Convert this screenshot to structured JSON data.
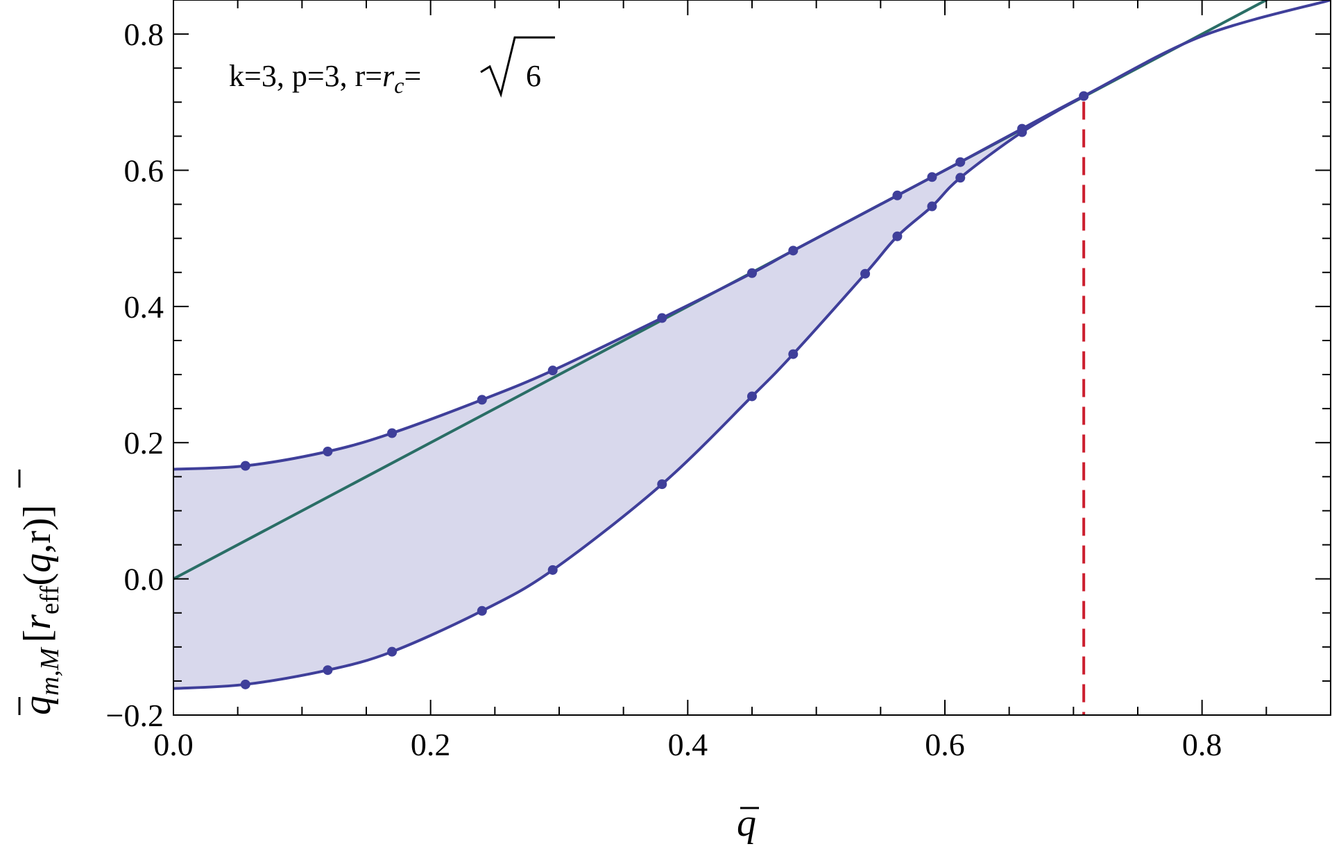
{
  "chart_data": {
    "type": "line",
    "title": "",
    "annotation": {
      "plain": "k=3, p=3, r=",
      "r_symbol": "r",
      "r_sub": "c",
      "equals": "=",
      "sqrt_arg": "6"
    },
    "xlabel": {
      "base": "q"
    },
    "ylabel": {
      "base": "q",
      "sub": "m,M",
      "open": "[",
      "r_sym": "r",
      "r_sub": "eff",
      "args_open": "(",
      "args_q": "q",
      "args_rest": ",r)]"
    },
    "xlim": [
      0.0,
      0.9
    ],
    "ylim": [
      -0.2,
      0.85
    ],
    "x_ticks": [
      {
        "value": 0.0,
        "label": "0.0"
      },
      {
        "value": 0.2,
        "label": "0.2"
      },
      {
        "value": 0.4,
        "label": "0.4"
      },
      {
        "value": 0.6,
        "label": "0.6"
      },
      {
        "value": 0.8,
        "label": "0.8"
      }
    ],
    "y_ticks": [
      {
        "value": -0.2,
        "label": "−0.2"
      },
      {
        "value": 0.0,
        "label": "0.0"
      },
      {
        "value": 0.2,
        "label": "0.2"
      },
      {
        "value": 0.4,
        "label": "0.4"
      },
      {
        "value": 0.6,
        "label": "0.6"
      },
      {
        "value": 0.8,
        "label": "0.8"
      }
    ],
    "x_minor_step": 0.05,
    "y_minor_step": 0.05,
    "grid": false,
    "legend": "none",
    "colors": {
      "curve": "#3F3F9A",
      "diagonal": "#2A6E66",
      "fill": "#D8D8EC",
      "critical": "#CC1F2F",
      "points": "#3F3F9A"
    },
    "series": [
      {
        "key": "upper",
        "points": [
          [
            0.0,
            0.161
          ],
          [
            0.056,
            0.166
          ],
          [
            0.12,
            0.187
          ],
          [
            0.17,
            0.214
          ],
          [
            0.24,
            0.263
          ],
          [
            0.295,
            0.306
          ],
          [
            0.38,
            0.383
          ],
          [
            0.45,
            0.449
          ],
          [
            0.482,
            0.482
          ],
          [
            0.563,
            0.563
          ],
          [
            0.59,
            0.59
          ],
          [
            0.612,
            0.612
          ],
          [
            0.66,
            0.661
          ],
          [
            0.708,
            0.709
          ],
          [
            0.8,
            0.797
          ],
          [
            0.9,
            0.85
          ]
        ]
      },
      {
        "key": "lower",
        "points": [
          [
            0.0,
            -0.161
          ],
          [
            0.056,
            -0.155
          ],
          [
            0.12,
            -0.134
          ],
          [
            0.17,
            -0.107
          ],
          [
            0.24,
            -0.047
          ],
          [
            0.295,
            0.013
          ],
          [
            0.38,
            0.139
          ],
          [
            0.45,
            0.268
          ],
          [
            0.482,
            0.33
          ],
          [
            0.538,
            0.448
          ],
          [
            0.563,
            0.503
          ],
          [
            0.59,
            0.547
          ],
          [
            0.612,
            0.589
          ],
          [
            0.66,
            0.656
          ],
          [
            0.708,
            0.709
          ]
        ]
      },
      {
        "key": "diagonal",
        "points": [
          [
            0.0,
            0.0
          ],
          [
            0.9,
            0.9
          ]
        ]
      }
    ],
    "markers_upper": [
      [
        0.056,
        0.166
      ],
      [
        0.12,
        0.187
      ],
      [
        0.17,
        0.214
      ],
      [
        0.24,
        0.263
      ],
      [
        0.295,
        0.306
      ],
      [
        0.38,
        0.383
      ],
      [
        0.45,
        0.449
      ],
      [
        0.482,
        0.482
      ],
      [
        0.563,
        0.563
      ],
      [
        0.59,
        0.59
      ],
      [
        0.612,
        0.612
      ],
      [
        0.66,
        0.661
      ],
      [
        0.708,
        0.709
      ]
    ],
    "markers_lower": [
      [
        0.056,
        -0.155
      ],
      [
        0.12,
        -0.134
      ],
      [
        0.17,
        -0.107
      ],
      [
        0.24,
        -0.047
      ],
      [
        0.295,
        0.013
      ],
      [
        0.38,
        0.139
      ],
      [
        0.45,
        0.268
      ],
      [
        0.482,
        0.33
      ],
      [
        0.538,
        0.448
      ],
      [
        0.563,
        0.503
      ],
      [
        0.59,
        0.547
      ],
      [
        0.612,
        0.589
      ],
      [
        0.66,
        0.656
      ]
    ],
    "critical_x": 0.708
  }
}
